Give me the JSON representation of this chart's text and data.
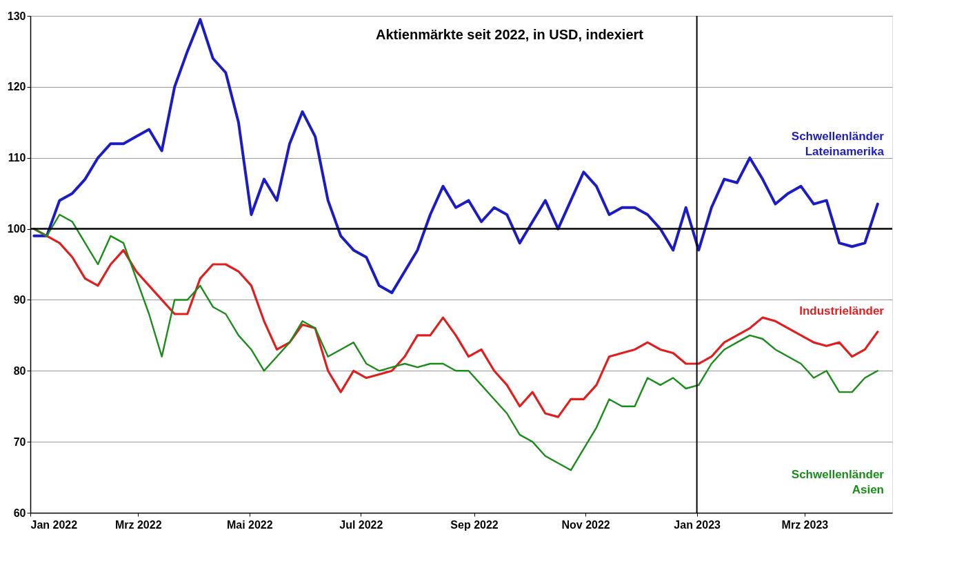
{
  "chart_data": {
    "type": "line",
    "title": "Aktienmärkte seit 2022, in USD, indexiert",
    "x": [
      "2022-01-03",
      "2022-01-10",
      "2022-01-17",
      "2022-01-24",
      "2022-01-31",
      "2022-02-07",
      "2022-02-14",
      "2022-02-21",
      "2022-02-28",
      "2022-03-07",
      "2022-03-14",
      "2022-03-21",
      "2022-03-28",
      "2022-04-04",
      "2022-04-11",
      "2022-04-18",
      "2022-04-25",
      "2022-05-02",
      "2022-05-09",
      "2022-05-16",
      "2022-05-23",
      "2022-05-30",
      "2022-06-06",
      "2022-06-13",
      "2022-06-20",
      "2022-06-27",
      "2022-07-04",
      "2022-07-11",
      "2022-07-18",
      "2022-07-25",
      "2022-08-01",
      "2022-08-08",
      "2022-08-15",
      "2022-08-22",
      "2022-08-29",
      "2022-09-05",
      "2022-09-12",
      "2022-09-19",
      "2022-09-26",
      "2022-10-03",
      "2022-10-10",
      "2022-10-17",
      "2022-10-24",
      "2022-10-31",
      "2022-11-07",
      "2022-11-14",
      "2022-11-21",
      "2022-11-28",
      "2022-12-05",
      "2022-12-12",
      "2022-12-19",
      "2022-12-26",
      "2023-01-02",
      "2023-01-09",
      "2023-01-16",
      "2023-01-23",
      "2023-01-30",
      "2023-02-06",
      "2023-02-13",
      "2023-02-20",
      "2023-02-27",
      "2023-03-06",
      "2023-03-13",
      "2023-03-20",
      "2023-03-27",
      "2023-04-03",
      "2023-04-10"
    ],
    "series": [
      {
        "name": "Schwellenländer Lateinamerika",
        "color": "#1c1cc4",
        "values": [
          99,
          99,
          104,
          105,
          107,
          110,
          112,
          112,
          113,
          114,
          111,
          120,
          125,
          129.5,
          124,
          122,
          115,
          102,
          107,
          104,
          112,
          116.5,
          113,
          104,
          99,
          97,
          96,
          92,
          91,
          94,
          97,
          102,
          106,
          103,
          104,
          101,
          103,
          102,
          98,
          101,
          104,
          100,
          104,
          108,
          106,
          102,
          103,
          103,
          102,
          100,
          97,
          103,
          97,
          103,
          107,
          106.5,
          110,
          107,
          103.5,
          105,
          106,
          103.5,
          104,
          98,
          97.5,
          98,
          103.5
        ]
      },
      {
        "name": "Industrieländer",
        "color": "#e01e1e",
        "values": [
          100,
          99,
          98,
          96,
          93,
          92,
          95,
          97,
          94,
          92,
          90,
          88,
          88,
          93,
          95,
          95,
          94,
          92,
          87,
          83,
          84,
          86.5,
          86,
          80,
          77,
          80,
          79,
          79.5,
          80,
          82,
          85,
          85,
          87.5,
          85,
          82,
          83,
          80,
          78,
          75,
          77,
          74,
          73.5,
          76,
          76,
          78,
          82,
          82.5,
          83,
          84,
          83,
          82.5,
          81,
          81,
          82,
          84,
          85,
          86,
          87.5,
          87,
          86,
          85,
          84,
          83.5,
          84,
          82,
          83,
          85.5
        ]
      },
      {
        "name": "Schwellenländer Asien",
        "color": "#1a8c1a",
        "values": [
          100,
          99,
          102,
          101,
          98,
          95,
          99,
          98,
          93,
          88,
          82,
          90,
          90,
          92,
          89,
          88,
          85,
          83,
          80,
          82,
          84,
          87,
          86,
          82,
          83,
          84,
          81,
          80,
          80.5,
          81,
          80.5,
          81,
          81,
          80,
          80,
          78,
          76,
          74,
          71,
          70,
          68,
          67,
          66,
          69,
          72,
          76,
          75,
          75,
          79,
          78,
          79,
          77.5,
          78,
          81,
          83,
          84,
          85,
          84.5,
          83,
          82,
          81,
          79,
          80,
          77,
          77,
          79,
          80
        ]
      }
    ],
    "xlim": [
      "2022-01-01",
      "2023-04-18"
    ],
    "xticks": [
      {
        "value": "2022-01-01",
        "label": "Jan 2022"
      },
      {
        "value": "2022-03-01",
        "label": "Mrz 2022"
      },
      {
        "value": "2022-05-01",
        "label": "Mai 2022"
      },
      {
        "value": "2022-07-01",
        "label": "Jul 2022"
      },
      {
        "value": "2022-09-01",
        "label": "Sep 2022"
      },
      {
        "value": "2022-11-01",
        "label": "Nov 2022"
      },
      {
        "value": "2023-01-01",
        "label": "Jan 2023"
      },
      {
        "value": "2023-03-01",
        "label": "Mrz 2023"
      }
    ],
    "ylim": [
      60,
      130
    ],
    "yticks": [
      60,
      70,
      80,
      90,
      100,
      110,
      120,
      130
    ],
    "grid": "y",
    "ref_lines": [
      {
        "axis": "y",
        "value": 100,
        "color": "#000000"
      },
      {
        "axis": "x",
        "value": "2023-01-01",
        "color": "#000000"
      }
    ]
  }
}
